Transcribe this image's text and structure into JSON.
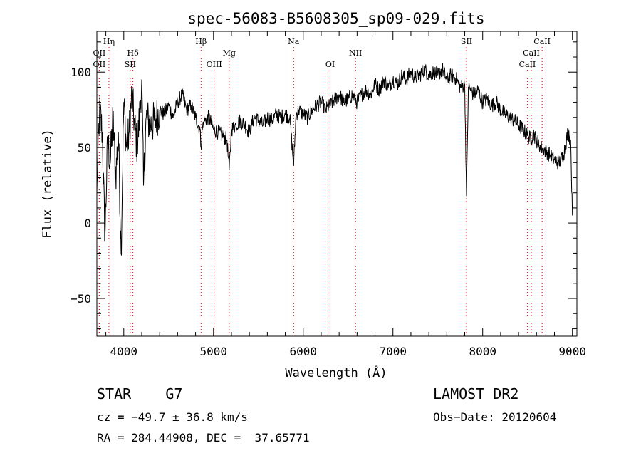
{
  "chart_data": {
    "type": "line",
    "title": "spec-56083-B5608305_sp09-029.fits",
    "xlabel": "Wavelength (Å)",
    "ylabel": "Flux (relative)",
    "xlim": [
      3700,
      9050
    ],
    "ylim": [
      -75,
      127
    ],
    "xticks": [
      4000,
      5000,
      6000,
      7000,
      8000,
      9000
    ],
    "xtick_labels": [
      "4000",
      "5000",
      "6000",
      "7000",
      "8000",
      "9000"
    ],
    "yticks": [
      -50,
      0,
      50,
      100
    ],
    "ytick_labels": [
      "−50",
      "0",
      "50",
      "100"
    ],
    "line_color": "#000000",
    "marker_color": "#ff0000",
    "grid": false,
    "series": [
      {
        "x": [
          3700,
          3730,
          3760,
          3790,
          3820,
          3850,
          3880,
          3910,
          3940,
          3970,
          4000,
          4030,
          4060,
          4090,
          4120,
          4150,
          4180,
          4200,
          4220,
          4250,
          4300,
          4350,
          4400,
          4450,
          4500,
          4550,
          4600,
          4650,
          4700,
          4750,
          4800,
          4850,
          4861,
          4880,
          4900,
          4950,
          5000,
          5050,
          5100,
          5150,
          5175,
          5200,
          5250,
          5300,
          5350,
          5400,
          5450,
          5500,
          5550,
          5600,
          5650,
          5700,
          5750,
          5800,
          5850,
          5893,
          5920,
          5950,
          6000,
          6050,
          6100,
          6150,
          6200,
          6250,
          6300,
          6350,
          6400,
          6450,
          6500,
          6550,
          6600,
          6650,
          6700,
          6750,
          6800,
          6850,
          6900,
          6950,
          7000,
          7050,
          7100,
          7150,
          7200,
          7250,
          7300,
          7350,
          7400,
          7450,
          7500,
          7550,
          7600,
          7650,
          7700,
          7750,
          7800,
          7820,
          7840,
          7870,
          7900,
          7950,
          8000,
          8050,
          8100,
          8150,
          8200,
          8250,
          8300,
          8350,
          8400,
          8450,
          8500,
          8542,
          8560,
          8600,
          8650,
          8700,
          8750,
          8800,
          8850,
          8900,
          8950,
          8980,
          9000
        ],
        "y": [
          20,
          75,
          60,
          -10,
          55,
          40,
          70,
          30,
          60,
          -20,
          80,
          50,
          60,
          85,
          65,
          50,
          75,
          95,
          25,
          70,
          65,
          68,
          75,
          72,
          78,
          70,
          80,
          85,
          75,
          78,
          70,
          62,
          50,
          65,
          68,
          70,
          62,
          60,
          58,
          55,
          35,
          62,
          65,
          68,
          65,
          60,
          70,
          68,
          65,
          70,
          68,
          72,
          70,
          72,
          70,
          38,
          72,
          75,
          72,
          70,
          75,
          78,
          80,
          75,
          78,
          82,
          85,
          80,
          82,
          85,
          80,
          85,
          88,
          85,
          92,
          88,
          95,
          90,
          95,
          92,
          98,
          95,
          100,
          96,
          98,
          102,
          98,
          100,
          98,
          102,
          95,
          98,
          96,
          90,
          92,
          18,
          90,
          88,
          85,
          88,
          80,
          82,
          78,
          80,
          75,
          72,
          70,
          68,
          65,
          62,
          58,
          55,
          60,
          55,
          50,
          48,
          45,
          42,
          40,
          45,
          60,
          55,
          5
        ]
      }
    ],
    "line_markers": [
      {
        "label": "Hη",
        "x": 3835,
        "row": 1
      },
      {
        "label": "OII",
        "x": 3727,
        "row": 2
      },
      {
        "label": "OII",
        "x": 3727,
        "row": 3
      },
      {
        "label": "Hδ",
        "x": 4102,
        "row": 2
      },
      {
        "label": "SII",
        "x": 4072,
        "row": 3
      },
      {
        "label": "Hβ",
        "x": 4861,
        "row": 1
      },
      {
        "label": "Mg",
        "x": 5175,
        "row": 2
      },
      {
        "label": "OIII",
        "x": 5007,
        "row": 3
      },
      {
        "label": "Na",
        "x": 5893,
        "row": 1
      },
      {
        "label": "NII",
        "x": 6583,
        "row": 2
      },
      {
        "label": "OI",
        "x": 6300,
        "row": 3
      },
      {
        "label": "SII",
        "x": 7820,
        "row": 1
      },
      {
        "label": "CaII",
        "x": 8662,
        "row": 1
      },
      {
        "label": "CaII",
        "x": 8542,
        "row": 2
      },
      {
        "label": "CaII",
        "x": 8498,
        "row": 3
      }
    ]
  },
  "info": {
    "class_line": "STAR    G7",
    "survey": "LAMOST DR2",
    "cz_line": "cz = −49.7 ± 36.8 km/s",
    "obs_date": "Obs−Date: 20120604",
    "coords_line": "RA = 284.44908, DEC =  37.65771"
  }
}
